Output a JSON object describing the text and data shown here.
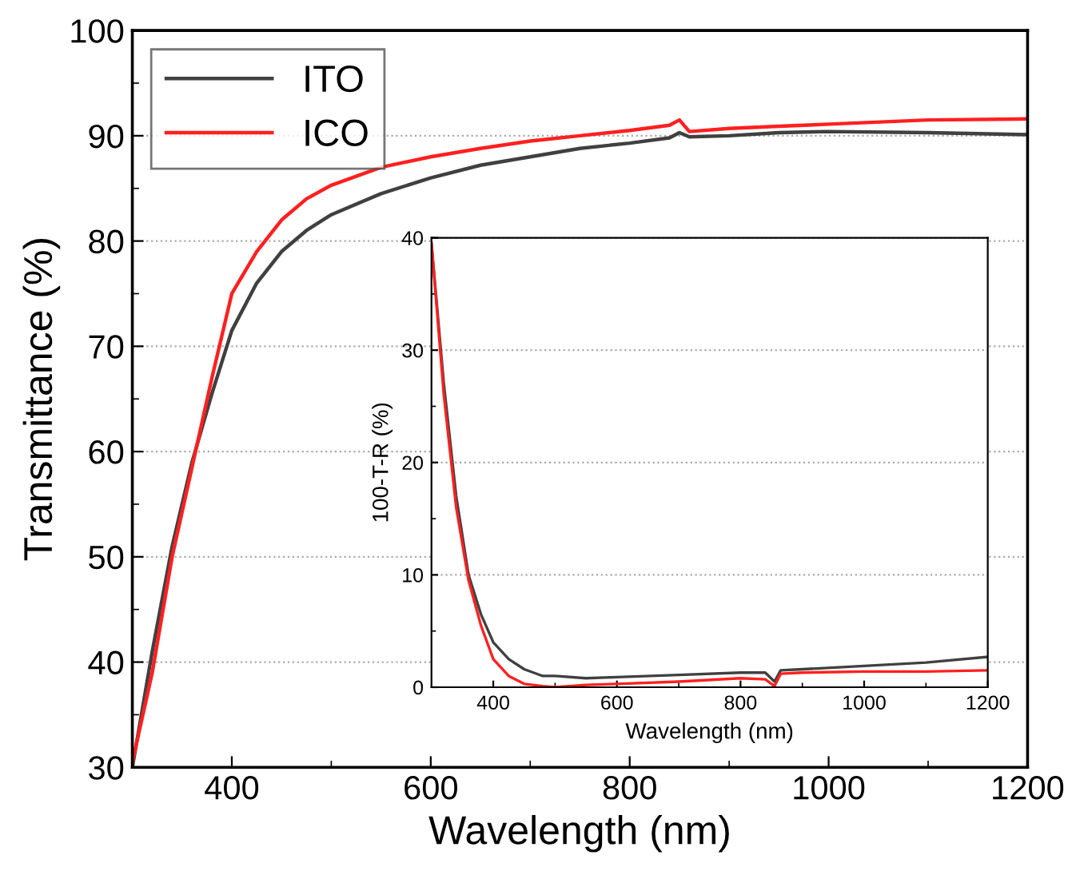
{
  "chart_data": [
    {
      "type": "line",
      "xlabel": "Wavelength (nm)",
      "ylabel": "Transmittance (%)",
      "xlim": [
        300,
        1200
      ],
      "ylim": [
        30,
        100
      ],
      "xticks": [
        400,
        {
          "value": 500,
          "label": null
        },
        600,
        {
          "value": 700,
          "label": null
        },
        800,
        {
          "value": 900,
          "label": null
        },
        1000,
        {
          "value": 1100,
          "label": null
        },
        1200
      ],
      "yticks": [
        30,
        {
          "value": 35,
          "label": null
        },
        40,
        {
          "value": 45,
          "label": null
        },
        50,
        {
          "value": 55,
          "label": null
        },
        60,
        {
          "value": 65,
          "label": null
        },
        70,
        {
          "value": 75,
          "label": null
        },
        80,
        {
          "value": 85,
          "label": null
        },
        90,
        {
          "value": 95,
          "label": null
        },
        100
      ],
      "grid": "y",
      "legend": "top left",
      "line_style": "solid",
      "marker": "none",
      "x": [
        300,
        320,
        340,
        360,
        380,
        400,
        425,
        450,
        475,
        500,
        550,
        600,
        650,
        700,
        750,
        800,
        840,
        850,
        860,
        900,
        950,
        1000,
        1100,
        1200
      ],
      "series": [
        {
          "name": "ITO",
          "color": "#404040",
          "values": [
            30,
            41,
            51,
            59,
            65.5,
            71.5,
            76,
            79,
            81,
            82.5,
            84.5,
            86,
            87.2,
            88,
            88.8,
            89.3,
            89.8,
            90.3,
            89.9,
            90,
            90.3,
            90.4,
            90.3,
            90.1
          ]
        },
        {
          "name": "ICO",
          "color": "#ff2020",
          "values": [
            30.5,
            39,
            50,
            58.5,
            67,
            75,
            79,
            82,
            84,
            85.3,
            87,
            88,
            88.8,
            89.5,
            90,
            90.5,
            91,
            91.5,
            90.4,
            90.7,
            90.9,
            91.1,
            91.5,
            91.6
          ]
        }
      ]
    },
    {
      "type": "line",
      "xlabel": "Wavelength (nm)",
      "ylabel": "100-T-R (%)",
      "xlim": [
        300,
        1200
      ],
      "ylim": [
        0,
        40
      ],
      "xticks": [
        400,
        {
          "value": 500,
          "label": null
        },
        600,
        {
          "value": 700,
          "label": null
        },
        800,
        {
          "value": 900,
          "label": null
        },
        1000,
        {
          "value": 1100,
          "label": null
        },
        1200
      ],
      "yticks": [
        0,
        {
          "value": 5,
          "label": null
        },
        10,
        {
          "value": 15,
          "label": null
        },
        20,
        {
          "value": 25,
          "label": null
        },
        30,
        {
          "value": 35,
          "label": null
        },
        40
      ],
      "grid": "y",
      "line_style": "solid",
      "marker": "none",
      "x": [
        300,
        320,
        340,
        360,
        380,
        400,
        425,
        450,
        480,
        500,
        550,
        600,
        700,
        800,
        840,
        855,
        865,
        900,
        1000,
        1100,
        1200
      ],
      "series": [
        {
          "color": "#404040",
          "values": [
            39.5,
            27,
            17,
            10,
            6.5,
            4,
            2.5,
            1.6,
            1.0,
            1.0,
            0.8,
            0.9,
            1.1,
            1.3,
            1.3,
            0.5,
            1.5,
            1.6,
            1.9,
            2.2,
            2.7
          ]
        },
        {
          "color": "#ff2020",
          "values": [
            39.5,
            26,
            16,
            9.5,
            5.5,
            2.5,
            1.0,
            0.3,
            0.1,
            0,
            0.2,
            0.3,
            0.5,
            0.8,
            0.7,
            0.1,
            1.2,
            1.3,
            1.4,
            1.4,
            1.5
          ]
        }
      ]
    }
  ]
}
